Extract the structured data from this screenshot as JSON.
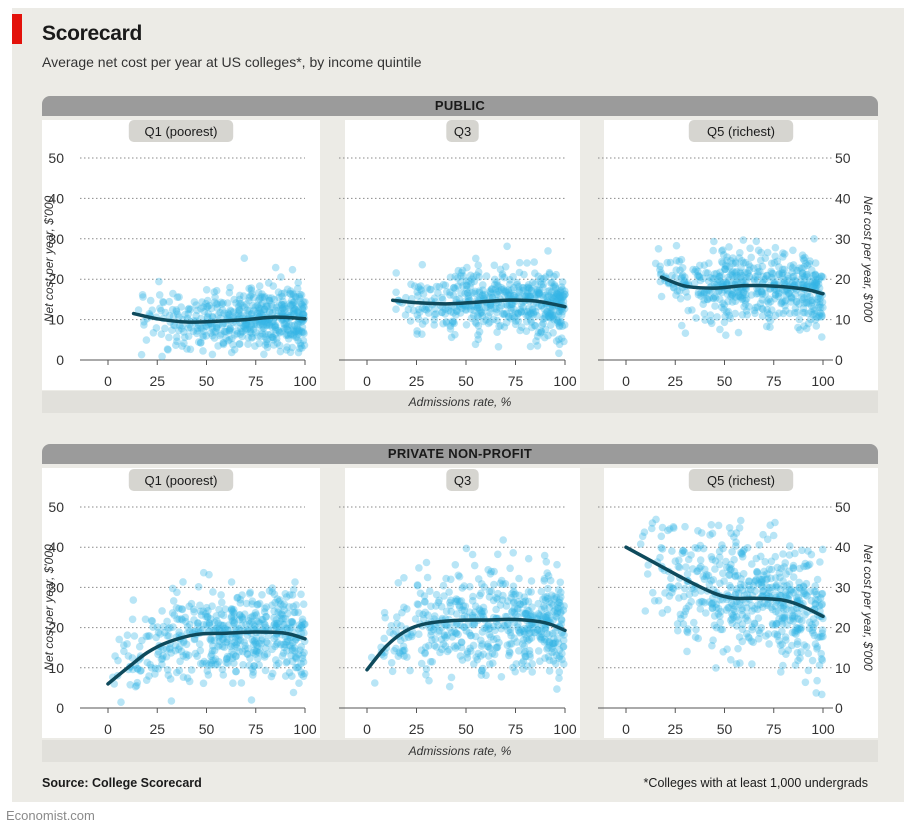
{
  "header": {
    "title": "Scorecard",
    "subtitle": "Average net cost per year at US colleges*, by income quintile"
  },
  "sections": [
    {
      "label": "PUBLIC"
    },
    {
      "label": "PRIVATE NON-PROFIT"
    }
  ],
  "xlabel": "Admissions rate, %",
  "ylabel": "Net cost per year, $'000",
  "footer": {
    "source": "Source: College Scorecard",
    "footnote": "*Colleges with at least 1,000 undergrads",
    "brand": "Economist.com"
  },
  "colors": {
    "dots": "#33b5e5",
    "trend": "#0e4a5c",
    "section_bar": "#9b9b9b",
    "red_accent": "#e3120b"
  },
  "chart_data": [
    {
      "type": "scatter",
      "section": "PUBLIC",
      "title": "Q1 (poorest)",
      "xlim": [
        0,
        100
      ],
      "ylim": [
        0,
        50
      ],
      "xticks": [
        0,
        25,
        50,
        75,
        100
      ],
      "yticks": [
        0,
        10,
        20,
        30,
        40,
        50
      ],
      "cloud": {
        "x_range": [
          15,
          100
        ],
        "y_center": 10,
        "y_spread": 5,
        "count": 520
      },
      "trend": {
        "x": [
          13,
          25,
          40,
          55,
          70,
          85,
          100
        ],
        "y": [
          11.5,
          10.2,
          9.4,
          9.6,
          10.0,
          10.6,
          10.2
        ]
      }
    },
    {
      "type": "scatter",
      "section": "PUBLIC",
      "title": "Q3",
      "xlim": [
        0,
        100
      ],
      "ylim": [
        0,
        50
      ],
      "xticks": [
        0,
        25,
        50,
        75,
        100
      ],
      "yticks": [
        0,
        10,
        20,
        30,
        40,
        50
      ],
      "cloud": {
        "x_range": [
          12,
          100
        ],
        "y_center": 14,
        "y_spread": 5,
        "count": 520
      },
      "trend": {
        "x": [
          13,
          25,
          40,
          55,
          70,
          85,
          100
        ],
        "y": [
          14.8,
          14.2,
          13.9,
          14.3,
          14.8,
          14.6,
          13.2
        ]
      }
    },
    {
      "type": "scatter",
      "section": "PUBLIC",
      "title": "Q5 (richest)",
      "xlim": [
        0,
        100
      ],
      "ylim": [
        0,
        50
      ],
      "xticks": [
        0,
        25,
        50,
        75,
        100
      ],
      "yticks": [
        0,
        10,
        20,
        30,
        40,
        50
      ],
      "cloud": {
        "x_range": [
          12,
          100
        ],
        "y_center": 18,
        "y_spread": 5.5,
        "count": 520
      },
      "trend": {
        "x": [
          18,
          30,
          45,
          60,
          75,
          90,
          100
        ],
        "y": [
          20.5,
          18.3,
          17.8,
          18.4,
          18.3,
          17.6,
          16.4
        ]
      }
    },
    {
      "type": "scatter",
      "section": "PRIVATE NON-PROFIT",
      "title": "Q1 (poorest)",
      "xlim": [
        0,
        100
      ],
      "ylim": [
        0,
        50
      ],
      "xticks": [
        0,
        25,
        50,
        75,
        100
      ],
      "yticks": [
        0,
        10,
        20,
        30,
        40,
        50
      ],
      "cloud": {
        "x_range": [
          2,
          100
        ],
        "y_center": 18,
        "y_spread": 7,
        "count": 540
      },
      "trend": {
        "x": [
          0,
          10,
          20,
          30,
          45,
          60,
          75,
          90,
          100
        ],
        "y": [
          6,
          10,
          13.8,
          16.3,
          18.3,
          18.6,
          18.9,
          18.6,
          17.2
        ]
      }
    },
    {
      "type": "scatter",
      "section": "PRIVATE NON-PROFIT",
      "title": "Q3",
      "xlim": [
        0,
        100
      ],
      "ylim": [
        0,
        50
      ],
      "xticks": [
        0,
        25,
        50,
        75,
        100
      ],
      "yticks": [
        0,
        10,
        20,
        30,
        40,
        50
      ],
      "cloud": {
        "x_range": [
          2,
          100
        ],
        "y_center": 21,
        "y_spread": 7.5,
        "count": 540
      },
      "trend": {
        "x": [
          0,
          10,
          20,
          30,
          45,
          60,
          75,
          90,
          100
        ],
        "y": [
          9.5,
          15.5,
          19.3,
          21.0,
          21.8,
          21.9,
          22.0,
          21.2,
          19.3
        ]
      }
    },
    {
      "type": "scatter",
      "section": "PRIVATE NON-PROFIT",
      "title": "Q5 (richest)",
      "xlim": [
        0,
        100
      ],
      "ylim": [
        0,
        50
      ],
      "xticks": [
        0,
        25,
        50,
        75,
        100
      ],
      "yticks": [
        0,
        10,
        20,
        30,
        40,
        50
      ],
      "cloud": {
        "x_range": [
          2,
          100
        ],
        "y_center": 28,
        "y_spread": 9,
        "count": 540
      },
      "trend": {
        "x": [
          0,
          15,
          30,
          45,
          55,
          65,
          80,
          90,
          100
        ],
        "y": [
          40,
          36,
          32,
          28.5,
          27.3,
          27.3,
          26.8,
          25.2,
          22.8
        ]
      }
    }
  ]
}
